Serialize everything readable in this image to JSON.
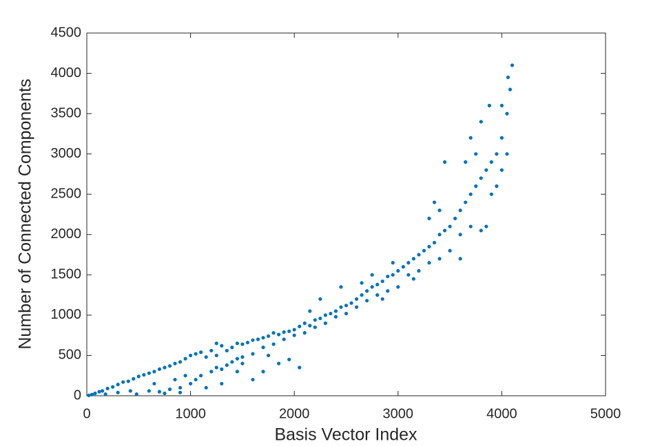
{
  "chart_data": {
    "type": "scatter",
    "x_label": "Basis Vector Index",
    "y_label": "Number of Connected Components",
    "color": "#0072bd",
    "xlim": [
      0,
      5000
    ],
    "xticks": [
      0,
      1000,
      2000,
      3000,
      4000,
      5000
    ],
    "ylim": [
      0,
      4500
    ],
    "yticks": [
      0,
      500,
      1000,
      1500,
      2000,
      2500,
      3000,
      3500,
      4000,
      4500
    ],
    "grid": false,
    "x": [
      20,
      50,
      80,
      120,
      150,
      200,
      250,
      300,
      350,
      400,
      450,
      500,
      180,
      300,
      420,
      480,
      550,
      600,
      650,
      700,
      750,
      800,
      850,
      900,
      950,
      1000,
      600,
      700,
      800,
      900,
      1000,
      650,
      850,
      950,
      750,
      900,
      1050,
      1100,
      1150,
      1200,
      1250,
      1300,
      1350,
      1400,
      1450,
      1500,
      1050,
      1100,
      1200,
      1250,
      1300,
      1350,
      1400,
      1450,
      1500,
      1150,
      1300,
      1450,
      1500,
      1250,
      1600,
      1550,
      1600,
      1650,
      1700,
      1750,
      1800,
      1850,
      1900,
      1950,
      2000,
      1600,
      1700,
      1800,
      1900,
      2000,
      1700,
      1850,
      1950,
      2050,
      1750,
      2050,
      2100,
      2150,
      2200,
      2250,
      2300,
      2350,
      2400,
      2450,
      2500,
      2100,
      2200,
      2300,
      2400,
      2500,
      2250,
      2450,
      2150,
      2550,
      2600,
      2650,
      2700,
      2750,
      2800,
      2850,
      2900,
      2950,
      3000,
      2600,
      2700,
      2800,
      2900,
      3000,
      2750,
      2950,
      2650,
      2850,
      3050,
      3100,
      3150,
      3200,
      3250,
      3300,
      3350,
      3400,
      3450,
      3500,
      3100,
      3200,
      3300,
      3400,
      3500,
      3150,
      3350,
      3450,
      3400,
      3300,
      3550,
      3600,
      3650,
      3700,
      3750,
      3800,
      3850,
      3900,
      3950,
      4000,
      4050,
      4080,
      4100,
      3600,
      3700,
      3800,
      3850,
      3900,
      3950,
      4000,
      3700,
      3800,
      3750,
      3650,
      3600,
      4050,
      3880,
      4000,
      4060
    ],
    "values": [
      5,
      15,
      30,
      50,
      60,
      90,
      110,
      140,
      170,
      180,
      210,
      240,
      20,
      40,
      60,
      20,
      260,
      280,
      300,
      330,
      350,
      370,
      400,
      420,
      460,
      500,
      60,
      50,
      80,
      100,
      150,
      150,
      200,
      250,
      30,
      40,
      520,
      540,
      480,
      560,
      500,
      620,
      560,
      600,
      650,
      640,
      200,
      250,
      300,
      350,
      330,
      380,
      420,
      460,
      480,
      100,
      150,
      300,
      400,
      650,
      200,
      660,
      690,
      700,
      720,
      740,
      780,
      760,
      790,
      800,
      820,
      520,
      600,
      640,
      700,
      750,
      300,
      400,
      450,
      350,
      500,
      860,
      900,
      870,
      940,
      960,
      1000,
      1020,
      1050,
      1100,
      1120,
      780,
      850,
      900,
      980,
      1020,
      1200,
      1350,
      1050,
      1150,
      1200,
      1250,
      1300,
      1350,
      1380,
      1420,
      1480,
      1500,
      1550,
      1100,
      1180,
      1250,
      1300,
      1350,
      1500,
      1650,
      1400,
      1200,
      1600,
      1650,
      1700,
      1750,
      1800,
      1850,
      1900,
      2000,
      2050,
      2100,
      1500,
      1550,
      1650,
      1700,
      1800,
      1450,
      2400,
      2900,
      2300,
      2200,
      2200,
      2300,
      2400,
      2500,
      2600,
      2700,
      2800,
      2900,
      3000,
      3200,
      3500,
      3800,
      4100,
      2000,
      2100,
      2050,
      2100,
      2500,
      2600,
      2800,
      3200,
      3400,
      3000,
      2900,
      1700,
      3000,
      3600,
      3600,
      3950
    ]
  }
}
